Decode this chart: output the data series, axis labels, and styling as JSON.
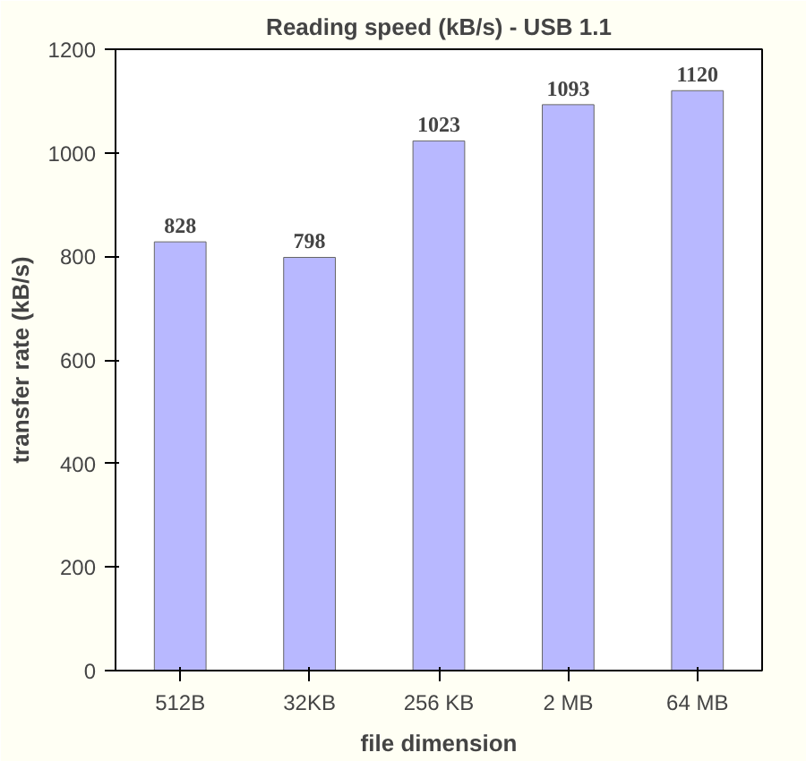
{
  "chart_data": {
    "type": "bar",
    "title": "Reading speed (kB/s) - USB 1.1",
    "xlabel": "file dimension",
    "ylabel": "transfer rate (kB/s)",
    "categories": [
      "512B",
      "32KB",
      "256 KB",
      "2 MB",
      "64 MB"
    ],
    "values": [
      828,
      798,
      1023,
      1093,
      1120
    ],
    "color": "#b8b8ff",
    "ylim": [
      0,
      1200
    ],
    "yticks": [
      0,
      200,
      400,
      600,
      800,
      1000,
      1200
    ],
    "grid": false,
    "data_labels": true
  }
}
